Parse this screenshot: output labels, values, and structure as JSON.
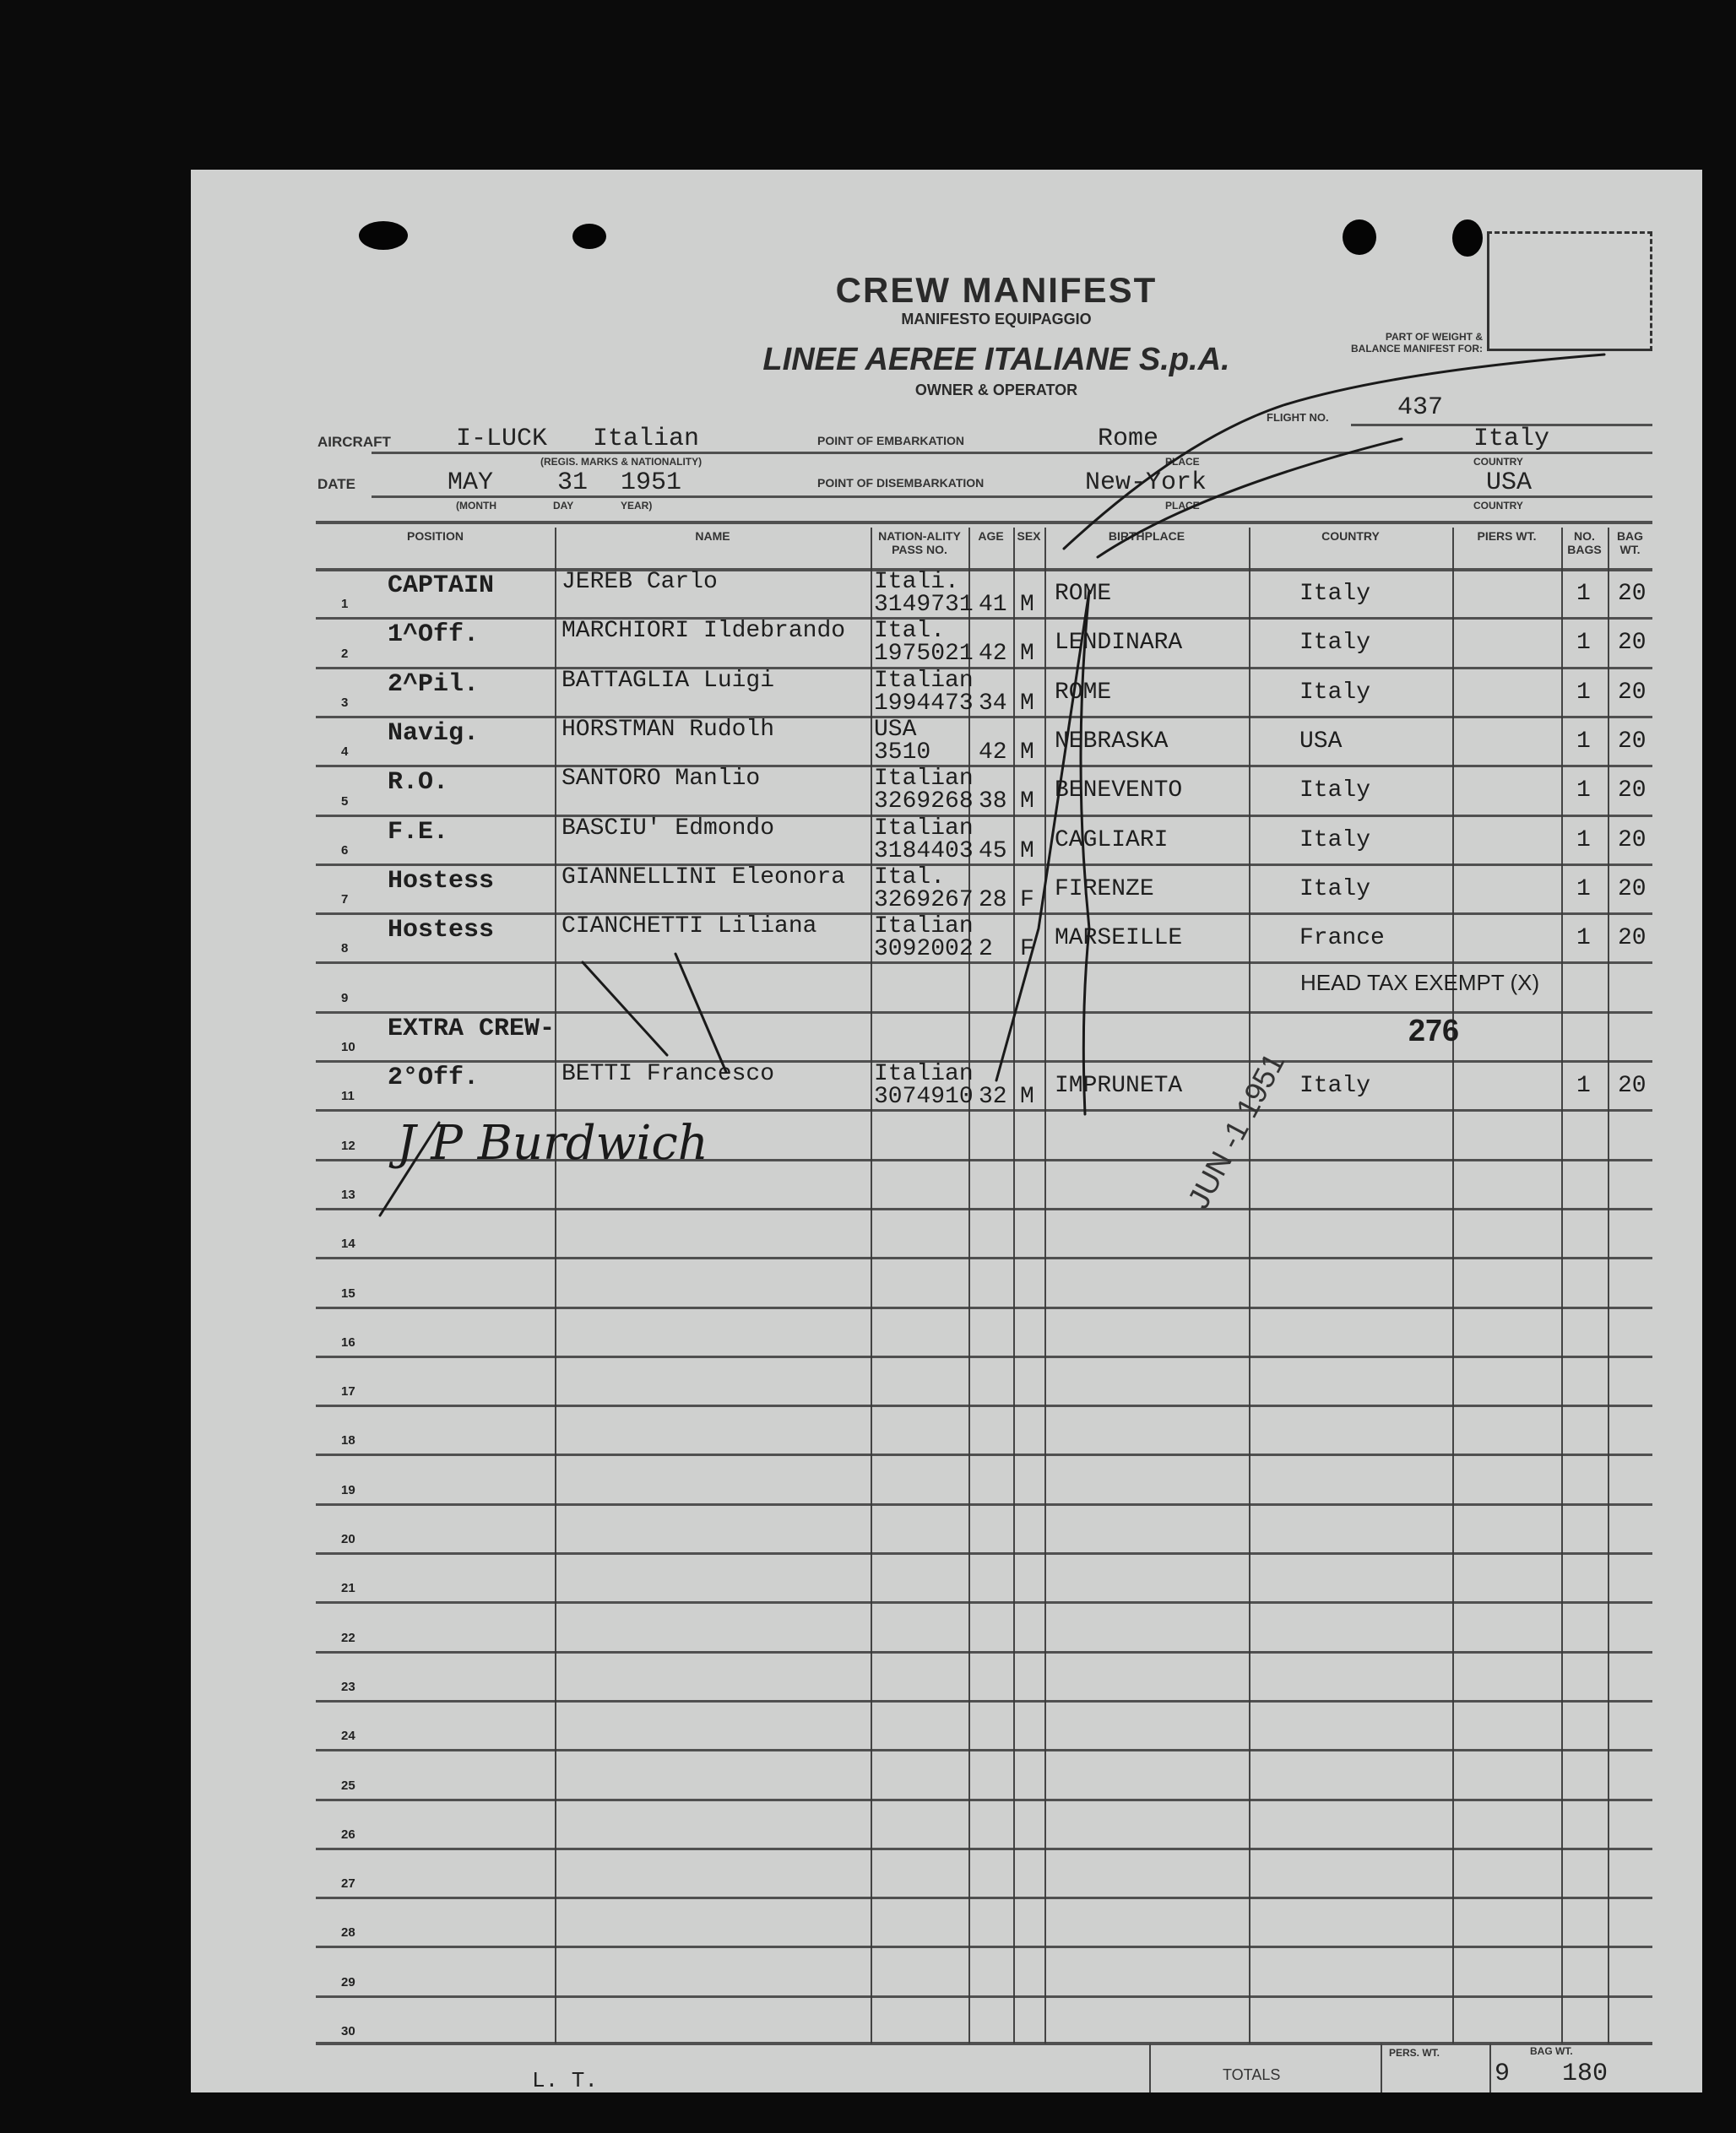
{
  "header": {
    "title": "CREW MANIFEST",
    "subtitle": "MANIFESTO EQUIPAGGIO",
    "airline": "LINEE AEREE ITALIANE S.p.A.",
    "owner_caption": "OWNER & OPERATOR",
    "weight_note_line1": "PART OF WEIGHT &",
    "weight_note_line2": "BALANCE MANIFEST FOR:",
    "flight_label": "FLIGHT NO.",
    "flight_no": "437",
    "aircraft_label": "AIRCRAFT",
    "aircraft_value": "I-LUCK   Italian",
    "aircraft_caption": "(REGIS. MARKS & NATIONALITY)",
    "date_label": "DATE",
    "date_month": "MAY",
    "date_day": "31",
    "date_year": "1951",
    "date_caption_month": "(MONTH",
    "date_caption_day": "DAY",
    "date_caption_year": "YEAR)",
    "embarkation_label": "POINT OF EMBARKATION",
    "embarkation_place": "Rome",
    "embarkation_country": "Italy",
    "disembarkation_label": "POINT OF DISEMBARKATION",
    "disembarkation_place": "New-York",
    "disembarkation_country": "USA",
    "place_caption": "PLACE",
    "country_caption": "COUNTRY"
  },
  "table": {
    "columns": {
      "position": "POSITION",
      "name": "NAME",
      "nationality": "NATION-ALITY PASS NO.",
      "age": "AGE",
      "sex": "SEX",
      "birthplace": "BIRTHPLACE",
      "country": "COUNTRY",
      "piers_wt": "PIERS WT.",
      "no_bags": "NO. BAGS",
      "bag_wt": "BAG WT."
    },
    "row_numbers": [
      "1",
      "2",
      "3",
      "4",
      "5",
      "6",
      "7",
      "8",
      "9",
      "10",
      "11",
      "12",
      "13",
      "14",
      "15",
      "16",
      "17",
      "18",
      "19",
      "20",
      "21",
      "22",
      "23",
      "24",
      "25",
      "26",
      "27",
      "28",
      "29",
      "30"
    ],
    "rows": [
      {
        "position": "CAPTAIN",
        "name": "JEREB  Carlo",
        "nationality": "Itali.",
        "passport": "3149731",
        "age": "41",
        "sex": "M",
        "birthplace": "ROME",
        "country": "Italy",
        "piers_wt": "",
        "bags": "1",
        "bag_wt": "20"
      },
      {
        "position": "1^Off.",
        "name": "MARCHIORI Ildebrando",
        "nationality": "Ital.",
        "passport": "1975021",
        "age": "42",
        "sex": "M",
        "birthplace": "LENDINARA",
        "country": "Italy",
        "piers_wt": "",
        "bags": "1",
        "bag_wt": "20"
      },
      {
        "position": "2^Pil.",
        "name": "BATTAGLIA Luigi",
        "nationality": "Italian",
        "passport": "1994473",
        "age": "34",
        "sex": "M",
        "birthplace": "ROME",
        "country": "Italy",
        "piers_wt": "",
        "bags": "1",
        "bag_wt": "20"
      },
      {
        "position": "Navig.",
        "name": "HORSTMAN Rudolh",
        "nationality": "USA",
        "passport": "3510",
        "age": "42",
        "sex": "M",
        "birthplace": "NEBRASKA",
        "country": "USA",
        "piers_wt": "",
        "bags": "1",
        "bag_wt": "20"
      },
      {
        "position": "R.O.",
        "name": "SANTORO Manlio",
        "nationality": "Italian",
        "passport": "3269268",
        "age": "38",
        "sex": "M",
        "birthplace": "BENEVENTO",
        "country": "Italy",
        "piers_wt": "",
        "bags": "1",
        "bag_wt": "20"
      },
      {
        "position": "F.E.",
        "name": "BASCIU' Edmondo",
        "nationality": "Italian",
        "passport": "3184403",
        "age": "45",
        "sex": "M",
        "birthplace": "CAGLIARI",
        "country": "Italy",
        "piers_wt": "",
        "bags": "1",
        "bag_wt": "20"
      },
      {
        "position": "Hostess",
        "name": "GIANNELLINI Eleonora",
        "nationality": "Ital.",
        "passport": "3269267",
        "age": "28",
        "sex": "F",
        "birthplace": "FIRENZE",
        "country": "Italy",
        "piers_wt": "",
        "bags": "1",
        "bag_wt": "20"
      },
      {
        "position": "Hostess",
        "name": "CIANCHETTI Liliana",
        "nationality": "Italian",
        "passport": "3092002",
        "age": "2",
        "sex": "F",
        "birthplace": "MARSEILLE",
        "country": "France",
        "piers_wt": "",
        "bags": "1",
        "bag_wt": "20"
      },
      {
        "position": "",
        "name": "",
        "nationality": "",
        "passport": "",
        "age": "",
        "sex": "",
        "birthplace": "",
        "country": "",
        "piers_wt": "",
        "bags": "",
        "bag_wt": ""
      },
      {
        "position": "EXTRA CREW-",
        "name": "",
        "nationality": "",
        "passport": "",
        "age": "",
        "sex": "",
        "birthplace": "",
        "country": "",
        "piers_wt": "",
        "bags": "",
        "bag_wt": ""
      },
      {
        "position": "2°Off.",
        "name": "BETTI Francesco",
        "nationality": "Italian",
        "passport": "3074910",
        "age": "32",
        "sex": "M",
        "birthplace": "IMPRUNETA",
        "country": "Italy",
        "piers_wt": "",
        "bags": "1",
        "bag_wt": "20"
      }
    ]
  },
  "annotations": {
    "head_tax": "HEAD TAX EXEMPT (X)",
    "stamp_number": "276",
    "date_stamp": "JUN -1 1951",
    "signature": "J P Burdwich"
  },
  "footer": {
    "initials": "L. T.",
    "totals_label": "TOTALS",
    "pers_wt_label": "PERS. WT.",
    "bag_wt_label": "BAG WT.",
    "total_bags": "9",
    "total_bag_wt": "180"
  }
}
